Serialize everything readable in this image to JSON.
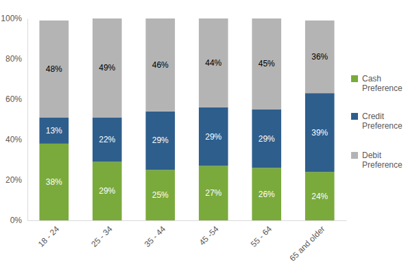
{
  "chart_data": {
    "type": "bar",
    "stacked": true,
    "data_labels": true,
    "grid": false,
    "legend": "right",
    "categories": [
      "18 - 24",
      "25 - 34",
      "35 - 44",
      "45 -54",
      "55 - 64",
      "65 and older"
    ],
    "series": [
      {
        "name": "Cash Preference",
        "color": "#7aaa3c",
        "values": [
          38,
          29,
          25,
          27,
          26,
          24
        ],
        "value_labels": [
          "38%",
          "29%",
          "25%",
          "27%",
          "26%",
          "24%"
        ]
      },
      {
        "name": "Credit Preference",
        "color": "#2e5e8c",
        "values": [
          13,
          22,
          29,
          29,
          29,
          39
        ],
        "value_labels": [
          "13%",
          "22%",
          "29%",
          "29%",
          "29%",
          "39%"
        ]
      },
      {
        "name": "Debit Preference",
        "color": "#b4b4b4",
        "values": [
          48,
          49,
          46,
          44,
          45,
          36
        ],
        "value_labels": [
          "48%",
          "49%",
          "46%",
          "44%",
          "45%",
          "36%"
        ]
      }
    ],
    "ylim": [
      0,
      100
    ],
    "yticks": [
      {
        "value": 0,
        "label": "0%"
      },
      {
        "value": 20,
        "label": "20%"
      },
      {
        "value": 40,
        "label": "40%"
      },
      {
        "value": 60,
        "label": "60%"
      },
      {
        "value": 80,
        "label": "80%"
      },
      {
        "value": 100,
        "label": "100%"
      }
    ]
  }
}
